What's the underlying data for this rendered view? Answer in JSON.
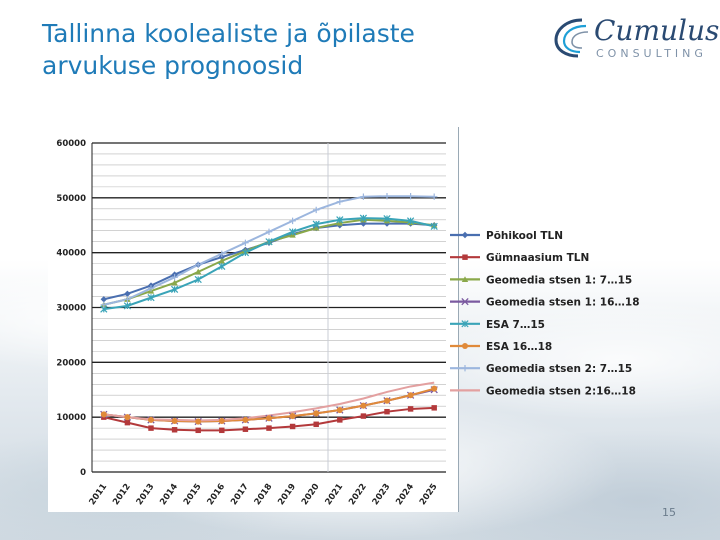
{
  "slide": {
    "title_line1": "Tallinna koolealiste ja õpilaste",
    "title_line2": "arvukuse prognoosid",
    "page_number": "15"
  },
  "logo": {
    "name": "Cumulus",
    "sub": "CONSULTING",
    "color": "#2a4a72",
    "accent": "#1e9fd6"
  },
  "chart_data": {
    "type": "line",
    "title": "",
    "xlabel": "",
    "ylabel": "",
    "ylim": [
      0,
      60000
    ],
    "yticks": [
      0,
      10000,
      20000,
      30000,
      40000,
      50000,
      60000
    ],
    "ytick_labels": [
      "0",
      "10000",
      "20000",
      "30000",
      "40000",
      "50000",
      "60000"
    ],
    "grid": true,
    "legend_position": "right",
    "x": [
      "2011",
      "2012",
      "2013",
      "2014",
      "2015",
      "2016",
      "2017",
      "2018",
      "2019",
      "2020",
      "2021",
      "2022",
      "2023",
      "2024",
      "2025"
    ],
    "series": [
      {
        "name": "Põhikool TLN",
        "color": "#4a6fb0",
        "marker": "diamond",
        "values": [
          31500,
          32500,
          34000,
          36000,
          37800,
          39200,
          40500,
          41800,
          43400,
          44500,
          45000,
          45300,
          45300,
          45300,
          45000
        ]
      },
      {
        "name": "Gümnaasium TLN",
        "color": "#b3393b",
        "marker": "square",
        "values": [
          10000,
          9000,
          8000,
          7700,
          7600,
          7600,
          7800,
          8000,
          8300,
          8700,
          9500,
          10200,
          11000,
          11500,
          11700
        ]
      },
      {
        "name": "Geomedia stsen 1: 7…15",
        "color": "#8aa84a",
        "marker": "triangle",
        "values": [
          30500,
          31500,
          33000,
          34500,
          36500,
          38500,
          40300,
          42000,
          43200,
          44500,
          45400,
          46000,
          45800,
          45500,
          45000
        ]
      },
      {
        "name": "Geomedia stsen 1: 16…18",
        "color": "#7b5aa0",
        "marker": "x",
        "values": [
          10500,
          10000,
          9500,
          9300,
          9200,
          9300,
          9500,
          9800,
          10200,
          10700,
          11300,
          12100,
          13000,
          14000,
          15000
        ]
      },
      {
        "name": "ESA 7…15",
        "color": "#3aa4b8",
        "marker": "asterisk",
        "values": [
          29700,
          30300,
          31800,
          33300,
          35100,
          37500,
          40000,
          42000,
          43800,
          45200,
          46000,
          46300,
          46200,
          45800,
          44800
        ]
      },
      {
        "name": "ESA 16…18",
        "color": "#e08a3a",
        "marker": "circle",
        "values": [
          10500,
          10000,
          9500,
          9300,
          9200,
          9300,
          9500,
          9800,
          10200,
          10700,
          11300,
          12100,
          13000,
          14000,
          15200
        ]
      },
      {
        "name": "Geomedia stsen 2:  7…15",
        "color": "#9cb6de",
        "marker": "plus",
        "values": [
          30500,
          31500,
          33500,
          35500,
          37800,
          39800,
          41800,
          43800,
          45800,
          47800,
          49300,
          50200,
          50300,
          50300,
          50200
        ]
      },
      {
        "name": "Geomedia stsen 2:16…18",
        "color": "#e3a0a0",
        "marker": "none",
        "values": [
          10500,
          10000,
          9600,
          9500,
          9400,
          9500,
          9800,
          10300,
          10900,
          11600,
          12400,
          13400,
          14600,
          15600,
          16300
        ]
      }
    ]
  }
}
